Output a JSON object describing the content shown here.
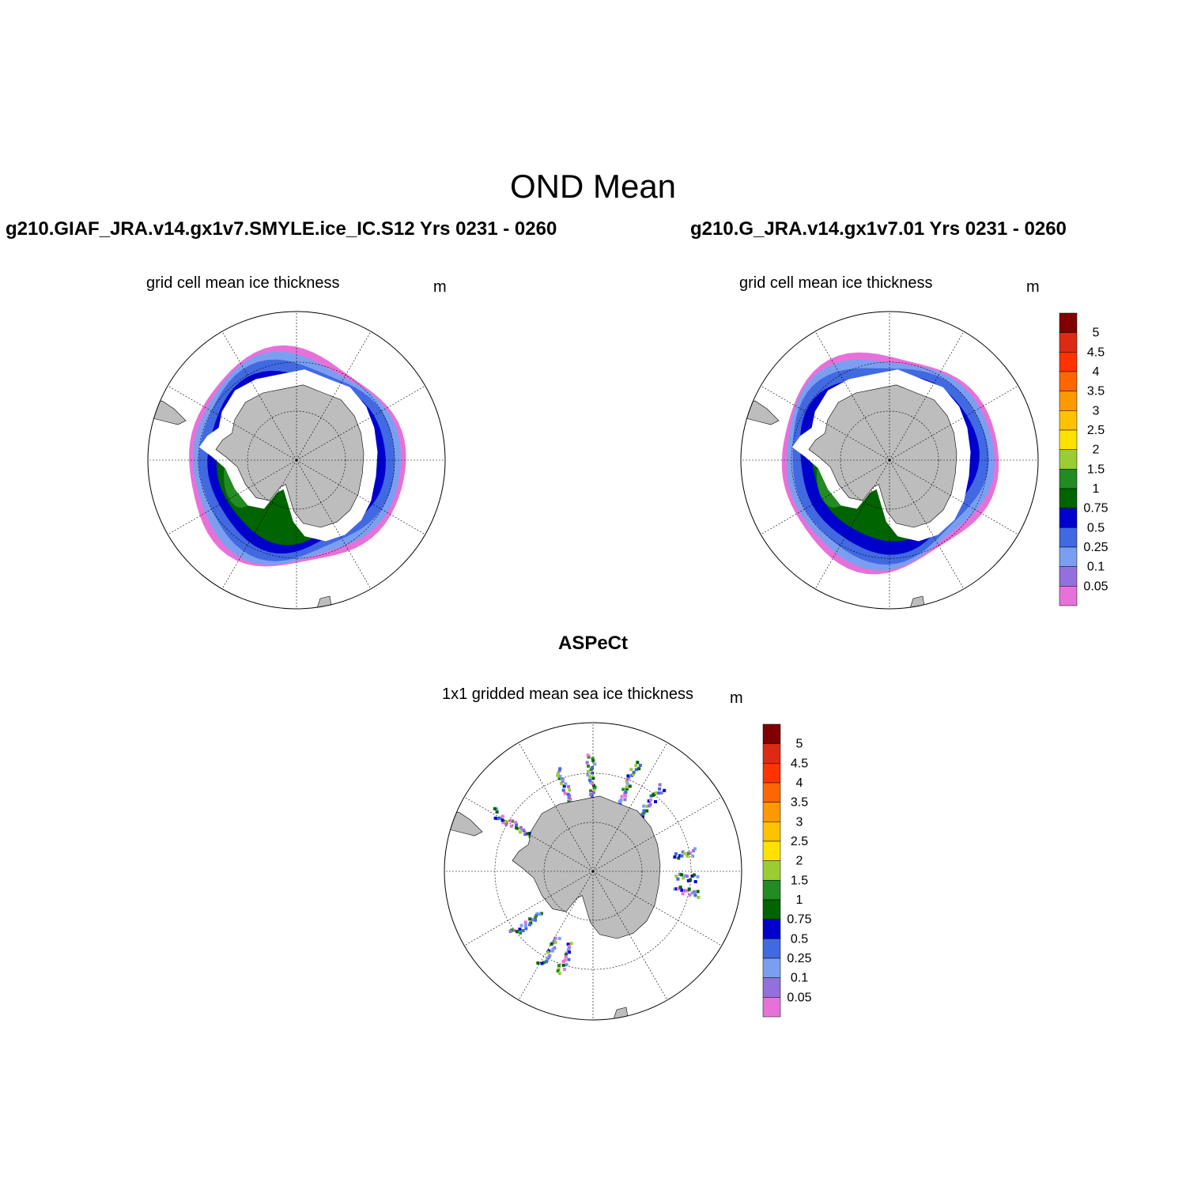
{
  "title": "OND Mean",
  "colors": {
    "land": "#bdbdbd",
    "ocean": "#ffffff",
    "graticule": "#000000",
    "scale": [
      "#e672d9",
      "#9370db",
      "#7b9ff0",
      "#4169e1",
      "#0000cd",
      "#006400",
      "#228b22",
      "#9acd32",
      "#ffe100",
      "#ffc200",
      "#ff9900",
      "#ff6600",
      "#ff3300",
      "#dd2a12",
      "#800000"
    ]
  },
  "colorbar": {
    "unit": "m",
    "levels": [
      "0.05",
      "0.1",
      "0.25",
      "0.5",
      "0.75",
      "1",
      "1.5",
      "2",
      "2.5",
      "3",
      "3.5",
      "4",
      "4.5",
      "5"
    ]
  },
  "panels": [
    {
      "case": "g210.GIAF_JRA.v14.gx1v7.SMYLE.ice_IC.S12  Yrs 0231 - 0260",
      "variable": "grid cell mean ice thickness",
      "unit": "m",
      "ice_ring": [
        {
          "level_index": 0,
          "radius": 0.73
        },
        {
          "level_index": 2,
          "radius": 0.7
        },
        {
          "level_index": 3,
          "radius": 0.66
        },
        {
          "level_index": 4,
          "radius": 0.6
        },
        {
          "level_index": 5,
          "radius": 0.54
        }
      ]
    },
    {
      "case": "g210.G_JRA.v14.gx1v7.01  Yrs 0231 - 0260",
      "variable": "grid cell mean ice thickness",
      "unit": "m",
      "ice_ring": [
        {
          "level_index": 0,
          "radius": 0.73
        },
        {
          "level_index": 2,
          "radius": 0.7
        },
        {
          "level_index": 3,
          "radius": 0.66
        },
        {
          "level_index": 4,
          "radius": 0.6
        },
        {
          "level_index": 5,
          "radius": 0.52
        }
      ]
    },
    {
      "case": "ASPeCt",
      "variable": "1x1 gridded mean sea ice thickness",
      "unit": "m"
    }
  ]
}
